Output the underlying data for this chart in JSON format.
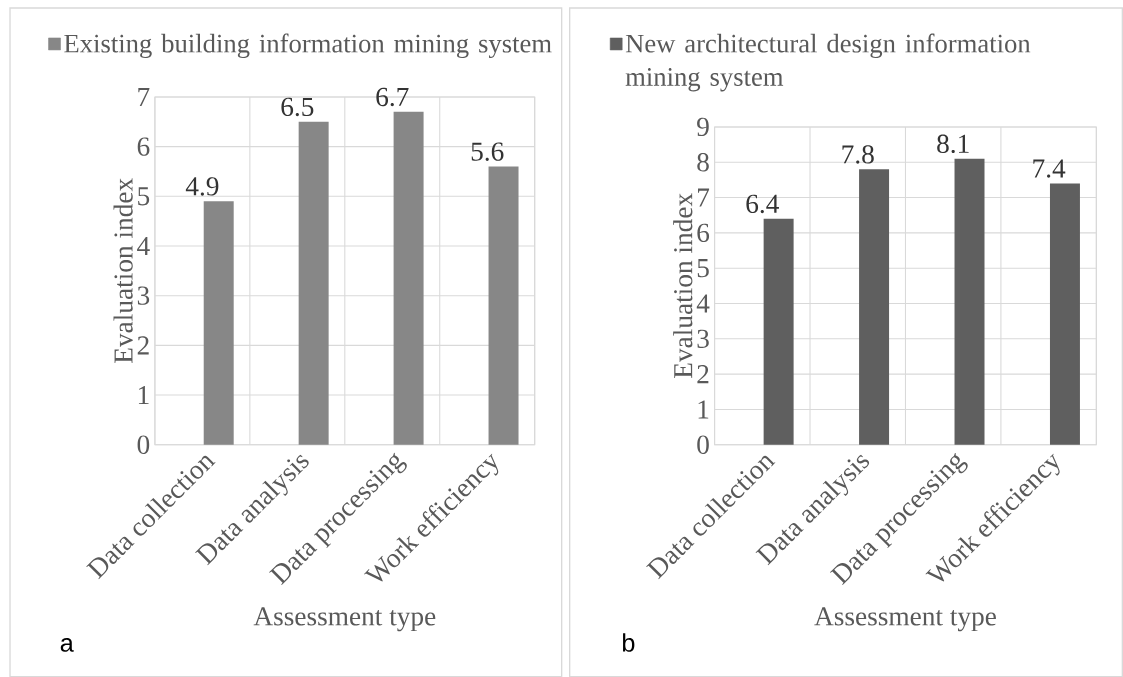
{
  "chart_data": [
    {
      "type": "bar",
      "categories": [
        "Data collection",
        "Data analysis",
        "Data processing",
        "Work efficiency"
      ],
      "xlabel": "Assessment type",
      "ylabel": "Evaluation index",
      "series": [
        {
          "name": "Existing building information mining system",
          "color": "#878787",
          "values": [
            4.9,
            6.5,
            6.7,
            5.6
          ]
        }
      ],
      "ylim": [
        0,
        7
      ],
      "yticks": [
        0,
        1,
        2,
        3,
        4,
        5,
        6,
        7
      ],
      "grid": true,
      "legend": "top left",
      "data_labels": true,
      "annotations": [
        "a"
      ]
    },
    {
      "type": "bar",
      "categories": [
        "Data collection",
        "Data analysis",
        "Data processing",
        "Work efficiency"
      ],
      "xlabel": "Assessment type",
      "ylabel": "Evaluation index",
      "series": [
        {
          "name": "New architectural design information mining system",
          "color": "#5f5f5f",
          "values": [
            6.4,
            7.8,
            8.1,
            7.4
          ]
        }
      ],
      "ylim": [
        0,
        9
      ],
      "yticks": [
        0,
        1,
        2,
        3,
        4,
        5,
        6,
        7,
        8,
        9
      ],
      "grid": true,
      "legend": "top left",
      "data_labels": true,
      "annotations": [
        "b"
      ]
    }
  ]
}
